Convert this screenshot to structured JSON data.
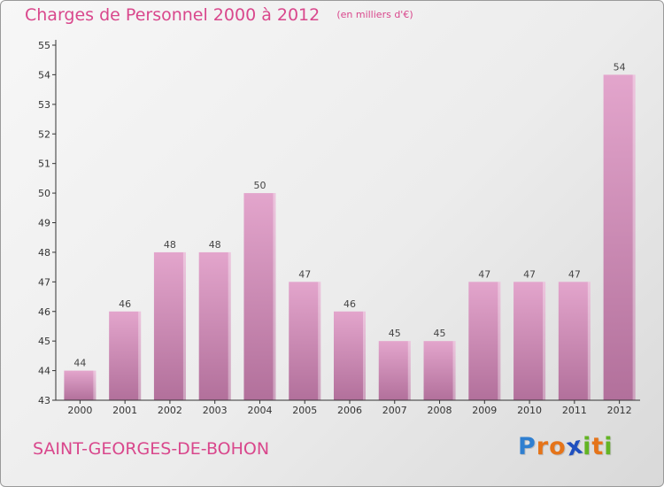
{
  "chart_data": {
    "type": "bar",
    "title": "Charges de Personnel 2000 à 2012",
    "subtitle": "(en milliers d'€)",
    "categories": [
      "2000",
      "2001",
      "2002",
      "2003",
      "2004",
      "2005",
      "2006",
      "2007",
      "2008",
      "2009",
      "2010",
      "2011",
      "2012"
    ],
    "values": [
      44,
      46,
      48,
      48,
      50,
      47,
      46,
      45,
      45,
      47,
      47,
      47,
      54
    ],
    "ylim": [
      43,
      55
    ],
    "yticks": [
      43,
      44,
      45,
      46,
      47,
      48,
      49,
      50,
      51,
      52,
      53,
      54,
      55
    ],
    "grid": false,
    "data_labels": true
  },
  "location": "SAINT-GEORGES-DE-BOHON",
  "logo": {
    "letters": [
      "P",
      "r",
      "o",
      "x",
      "i",
      "t",
      "i"
    ],
    "colors": [
      "#2f7fd0",
      "#e5741a",
      "#e5741a",
      "#1f4fbf",
      "#63b423",
      "#e5741a",
      "#63b423"
    ]
  },
  "colors": {
    "title": "#d9478c",
    "bar_top": "#e3a5cc",
    "bar_bottom": "#b2709b",
    "axis": "#333333"
  }
}
